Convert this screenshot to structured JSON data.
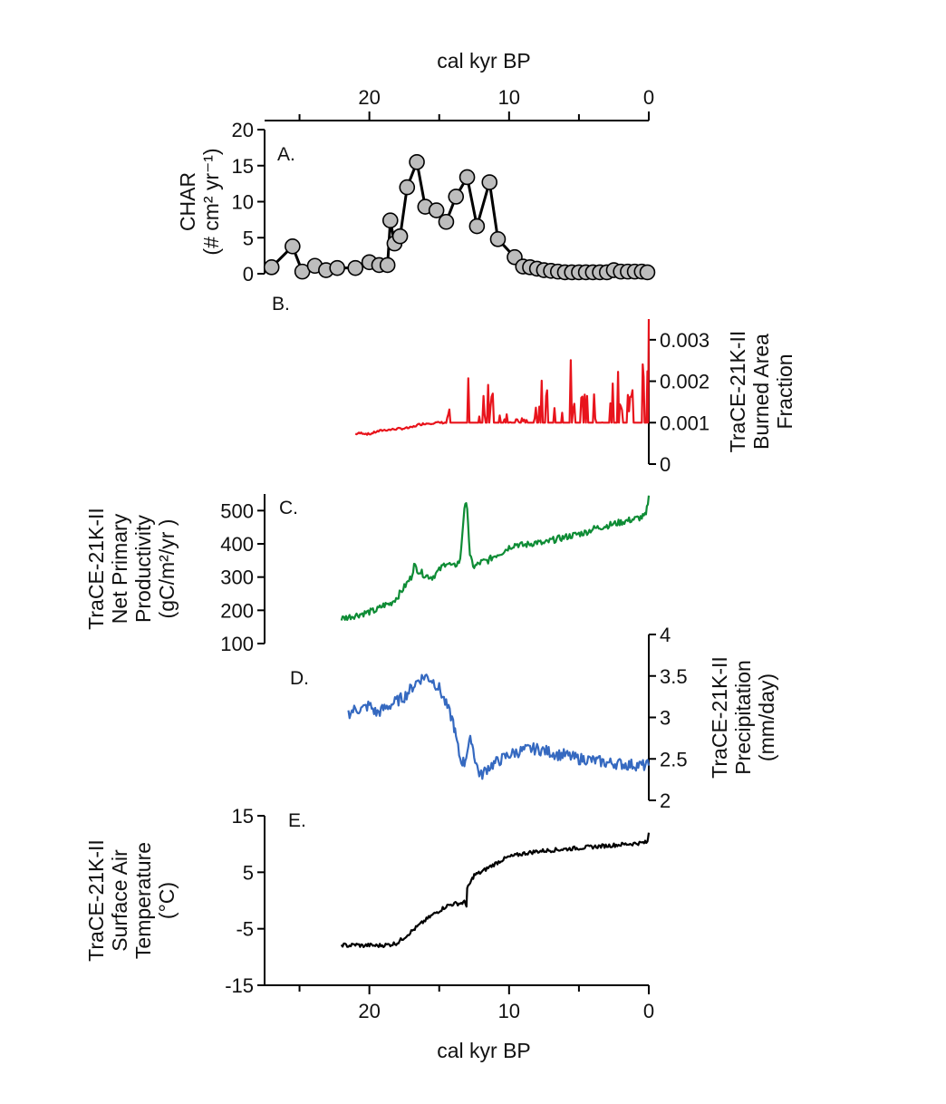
{
  "chart_data": [
    {
      "type": "line",
      "panel_label": "A.",
      "series": [
        {
          "color": "#000000",
          "marker": "circle",
          "marker_fill": "#bdbdbd",
          "x": [
            27,
            25.5,
            24.8,
            23.9,
            23.1,
            22.3,
            21,
            20,
            19.3,
            18.7,
            18.5,
            18.2,
            17.8,
            17.3,
            16.6,
            16,
            15.2,
            14.5,
            13.8,
            13,
            12.3,
            11.4,
            10.8,
            9.6,
            9.0,
            8.5,
            8.0,
            7.5,
            7.0,
            6.5,
            6.0,
            5.5,
            5.0,
            4.5,
            4.0,
            3.5,
            3.0,
            2.5,
            2.0,
            1.5,
            1.0,
            0.5,
            0.1
          ],
          "values": [
            0.9,
            3.8,
            0.3,
            1.1,
            0.5,
            0.8,
            0.8,
            1.6,
            1.2,
            1.2,
            7.4,
            4.2,
            5.2,
            12.0,
            15.5,
            9.3,
            8.8,
            7.2,
            10.7,
            13.4,
            6.6,
            12.7,
            4.8,
            2.3,
            1.0,
            0.9,
            0.7,
            0.5,
            0.4,
            0.3,
            0.2,
            0.2,
            0.2,
            0.2,
            0.2,
            0.2,
            0.2,
            0.5,
            0.3,
            0.3,
            0.3,
            0.3,
            0.2
          ]
        }
      ],
      "xlabel": "cal kyr BP",
      "xlim": [
        27.5,
        0
      ],
      "xticks": [
        "20",
        "10",
        "0"
      ],
      "ylabel_lines": [
        "CHAR",
        "(# cm² yr⁻¹)"
      ],
      "ylim": [
        0,
        20
      ],
      "yticks": [
        "0",
        "5",
        "10",
        "15",
        "20"
      ]
    },
    {
      "type": "line",
      "panel_label": "B.",
      "series": [
        {
          "color": "#e8141c",
          "x": [
            21,
            20.5,
            20,
            19.5,
            19,
            18.5,
            18,
            17.5,
            17,
            16.5,
            16,
            15.5,
            15,
            14.5,
            14.2,
            14.0,
            13.6,
            13.3,
            13.0,
            12.5,
            12.2,
            12.0,
            11.5,
            11.0,
            10.5,
            10.0,
            9.5,
            9.0,
            8.5,
            8.0,
            7.5,
            7.2,
            7.0,
            6.5,
            6.2,
            6.0,
            5.5,
            5.0,
            4.5,
            4.0,
            3.5,
            3.0,
            2.5,
            2.2,
            2.0,
            1.5,
            1.0,
            0.8,
            0.5,
            0.3,
            0.1,
            0.0
          ],
          "values": [
            0.00073,
            0.00075,
            0.00072,
            0.00078,
            0.00082,
            0.00083,
            0.00085,
            0.00086,
            0.00088,
            0.00095,
            0.00098,
            0.00099,
            0.001,
            0.001,
            0.0014,
            0.00125,
            0.001,
            0.0017,
            0.0012,
            0.0021,
            0.0014,
            0.0012,
            0.00195,
            0.00105,
            0.0015,
            0.001,
            0.0012,
            0.001,
            0.0011,
            0.0015,
            0.0021,
            0.0017,
            0.0019,
            0.0015,
            0.0021,
            0.0027,
            0.0018,
            0.0023,
            0.0019,
            0.0021,
            0.0016,
            0.0025,
            0.0018,
            0.0028,
            0.0017,
            0.0022,
            0.0029,
            0.0018,
            0.0021,
            0.0028,
            0.0022,
            0.0035
          ]
        }
      ],
      "ylabel_lines": [
        "TraCE-21K-II",
        "Burned Area",
        "Fraction"
      ],
      "ylim": [
        0,
        0.0035
      ],
      "yticks": [
        "0",
        "0.001",
        "0.002",
        "0.003"
      ]
    },
    {
      "type": "line",
      "panel_label": "C.",
      "series": [
        {
          "color": "#0e8c35",
          "x": [
            22,
            21.5,
            21,
            20.5,
            20,
            19.5,
            19,
            18.5,
            18,
            17.5,
            17,
            16.8,
            16.5,
            16,
            15.5,
            15,
            14.5,
            14,
            13.5,
            13.2,
            13.0,
            12.8,
            12.5,
            12,
            11.5,
            11,
            10.5,
            10,
            9.5,
            9,
            8.5,
            8,
            7.5,
            7,
            6.5,
            6,
            5.5,
            5,
            4.5,
            4,
            3.5,
            3,
            2.5,
            2,
            1.5,
            1,
            0.5,
            0.2,
            0.0
          ],
          "values": [
            175,
            180,
            185,
            190,
            195,
            200,
            215,
            220,
            240,
            270,
            300,
            335,
            320,
            305,
            300,
            320,
            345,
            330,
            350,
            510,
            515,
            360,
            330,
            345,
            350,
            365,
            375,
            390,
            400,
            395,
            400,
            405,
            400,
            410,
            415,
            420,
            425,
            430,
            435,
            445,
            450,
            455,
            460,
            465,
            470,
            475,
            480,
            485,
            545
          ]
        }
      ],
      "ylabel_lines": [
        "TraCE-21K-II",
        "Net Primary",
        "Productivity",
        "(gC/m²/yr )"
      ],
      "ylim": [
        100,
        550
      ],
      "yticks": [
        "100",
        "200",
        "300",
        "400",
        "500"
      ]
    },
    {
      "type": "line",
      "panel_label": "D.",
      "series": [
        {
          "color": "#3569c0",
          "x": [
            21.5,
            21,
            20.5,
            20,
            19.5,
            19,
            18.5,
            18,
            17.5,
            17,
            16.5,
            16,
            15.5,
            15,
            14.5,
            14,
            13.8,
            13.5,
            13.2,
            13.0,
            12.7,
            12.5,
            12.2,
            12,
            11.5,
            11,
            10.5,
            10,
            9.5,
            9,
            8.5,
            8,
            7.5,
            7,
            6.5,
            6,
            5.5,
            5,
            4.5,
            4,
            3.5,
            3,
            2.5,
            2,
            1.5,
            1,
            0.5,
            0.0
          ],
          "values": [
            3.05,
            3.1,
            3.1,
            3.15,
            3.05,
            3.1,
            3.15,
            3.2,
            3.25,
            3.35,
            3.45,
            3.5,
            3.45,
            3.35,
            3.15,
            2.95,
            2.75,
            2.5,
            2.45,
            2.6,
            2.75,
            2.55,
            2.35,
            2.3,
            2.4,
            2.45,
            2.5,
            2.55,
            2.58,
            2.6,
            2.62,
            2.62,
            2.6,
            2.58,
            2.55,
            2.55,
            2.52,
            2.5,
            2.5,
            2.48,
            2.47,
            2.45,
            2.45,
            2.44,
            2.43,
            2.43,
            2.42,
            2.42
          ]
        }
      ],
      "ylabel_lines": [
        "TraCE-21K-II",
        "Precipitation",
        "(mm/day)"
      ],
      "ylim": [
        2,
        4
      ],
      "yticks": [
        "2",
        "2.5",
        "3",
        "3.5",
        "4"
      ]
    },
    {
      "type": "line",
      "panel_label": "E.",
      "series": [
        {
          "color": "#000000",
          "x": [
            22,
            21.5,
            21,
            20.5,
            20,
            19.5,
            19,
            18.5,
            18,
            17.5,
            17,
            16.5,
            16,
            15.5,
            15,
            14.5,
            14,
            13.5,
            13.2,
            13.05,
            13.0,
            12.7,
            12.5,
            12,
            11.5,
            11,
            10.5,
            10,
            9.5,
            9,
            8.5,
            8,
            7.5,
            7,
            6.5,
            6,
            5.5,
            5,
            4.5,
            4,
            3.5,
            3,
            2.5,
            2,
            1.5,
            1,
            0.5,
            0.1,
            0.0
          ],
          "values": [
            -7.8,
            -8.0,
            -7.8,
            -8.0,
            -7.9,
            -8.0,
            -7.9,
            -7.8,
            -7.5,
            -6.5,
            -5.5,
            -4.5,
            -3.5,
            -2.6,
            -1.8,
            -1.0,
            -0.6,
            -0.5,
            -0.3,
            -0.8,
            2.0,
            3.5,
            4.5,
            5.0,
            5.8,
            6.5,
            7.2,
            7.7,
            8.0,
            8.3,
            8.5,
            8.7,
            8.8,
            8.9,
            9.0,
            9.1,
            9.2,
            9.3,
            9.4,
            9.5,
            9.6,
            9.7,
            9.8,
            9.9,
            10.0,
            10.1,
            10.2,
            10.3,
            12.0
          ]
        }
      ],
      "xlabel": "cal kyr BP",
      "xlim": [
        27.5,
        0
      ],
      "xticks": [
        "20",
        "10",
        "0"
      ],
      "ylabel_lines": [
        "TraCE-21K-II",
        "Surface Air",
        "Temperature",
        "(°C)"
      ],
      "ylim": [
        -15,
        15
      ],
      "yticks": [
        "-15",
        "-5",
        "5",
        "15"
      ]
    }
  ]
}
